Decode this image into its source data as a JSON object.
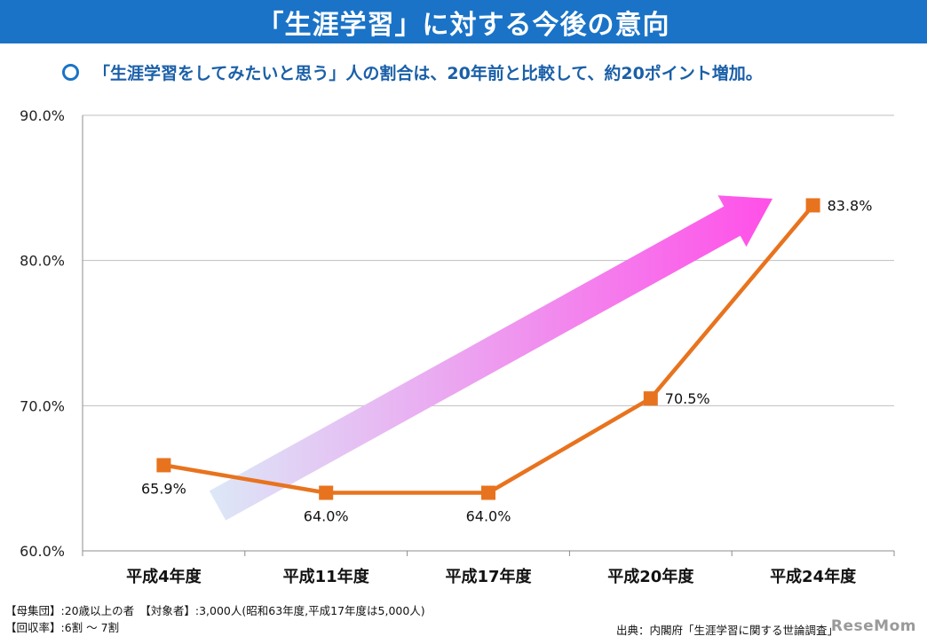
{
  "header": {
    "title": "「生涯学習」に対する今後の意向"
  },
  "subtitle": {
    "text": "「生涯学習をしてみたいと思う」人の割合は、20年前と比較して、約20ポイント増加。"
  },
  "footer": {
    "population": "【母集団】:20歳以上の者　【対象者】:3,000人(昭和63年度,平成17年度は5,000人)",
    "response_rate": "【回収率】:6割 ～ 7割",
    "source": "出典：内閣府「生涯学習に関する世論調査」"
  },
  "watermark": "ReseMom",
  "colors": {
    "banner": "#1a73c7",
    "line": "#e8731e",
    "arrow_start": "#dce8f7",
    "arrow_end": "#ff4fe8"
  },
  "chart_data": {
    "type": "line",
    "categories": [
      "平成4年度",
      "平成11年度",
      "平成17年度",
      "平成20年度",
      "平成24年度"
    ],
    "series": [
      {
        "values": [
          65.9,
          64.0,
          64.0,
          70.5,
          83.8
        ]
      }
    ],
    "data_labels": [
      "65.9%",
      "64.0%",
      "64.0%",
      "70.5%",
      "83.8%"
    ],
    "y_ticks": [
      "60.0%",
      "70.0%",
      "80.0%",
      "90.0%"
    ],
    "ylim": [
      60,
      90
    ],
    "grid": true,
    "trend_arrow": true
  }
}
